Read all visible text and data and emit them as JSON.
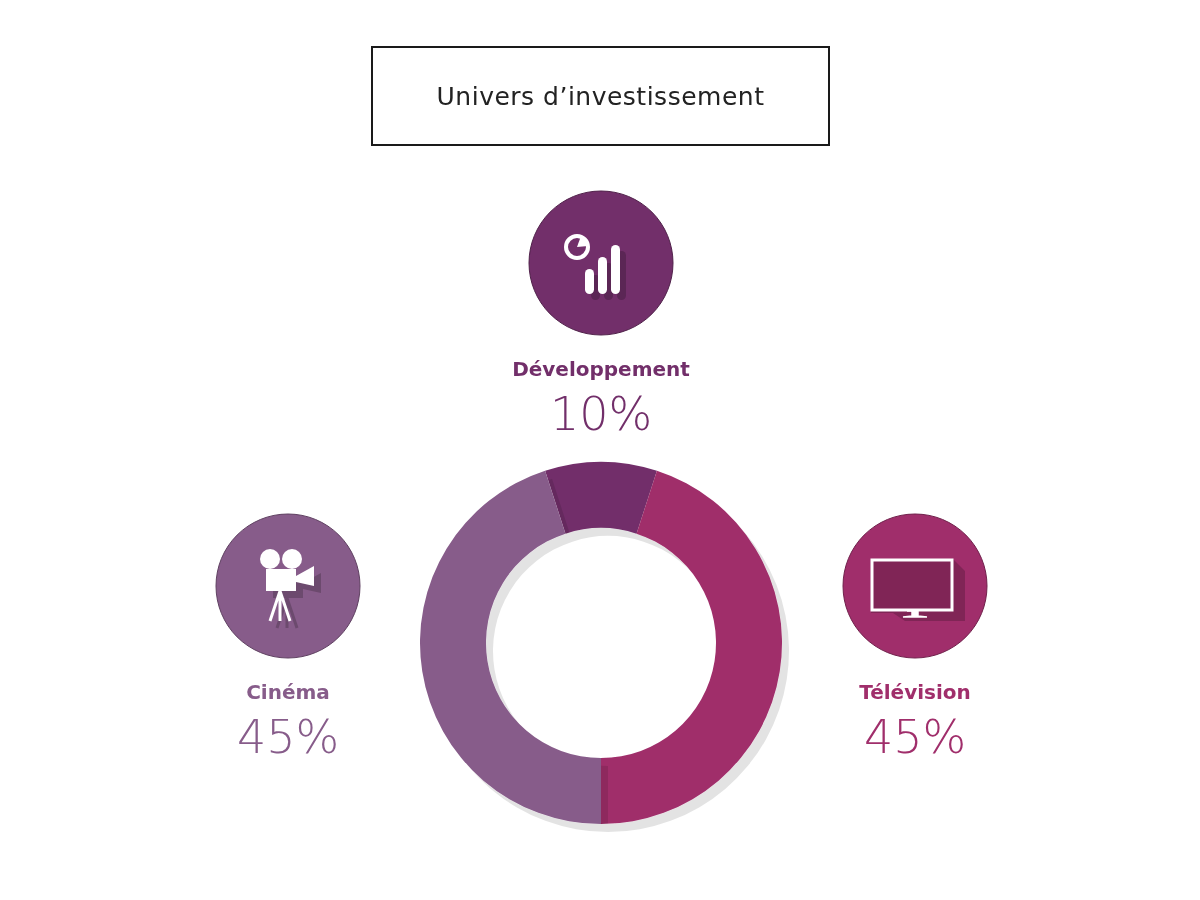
{
  "chart_data": {
    "type": "donut",
    "title": "Univers d’investissement",
    "categories": [
      "Développement",
      "Télévision",
      "Cinéma"
    ],
    "values": [
      10,
      45,
      45
    ],
    "value_labels": [
      "10%",
      "45%",
      "45%"
    ],
    "colors": [
      "#722f6a",
      "#a02e6b",
      "#875c8a"
    ]
  }
}
